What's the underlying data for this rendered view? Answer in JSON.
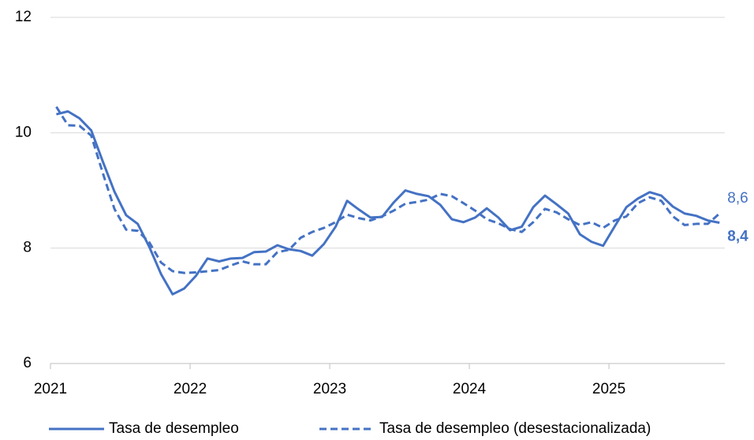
{
  "chart_data": {
    "type": "line",
    "x": [
      2021.042,
      2021.125,
      2021.208,
      2021.292,
      2021.375,
      2021.458,
      2021.542,
      2021.625,
      2021.708,
      2021.792,
      2021.875,
      2021.958,
      2022.042,
      2022.125,
      2022.208,
      2022.292,
      2022.375,
      2022.458,
      2022.542,
      2022.625,
      2022.708,
      2022.792,
      2022.875,
      2022.958,
      2023.042,
      2023.125,
      2023.208,
      2023.292,
      2023.375,
      2023.458,
      2023.542,
      2023.625,
      2023.708,
      2023.792,
      2023.875,
      2023.958,
      2024.042,
      2024.125,
      2024.208,
      2024.292,
      2024.375,
      2024.458,
      2024.542,
      2024.625,
      2024.708,
      2024.792,
      2024.875,
      2024.958,
      2025.042,
      2025.125,
      2025.208,
      2025.292,
      2025.375,
      2025.458,
      2025.542,
      2025.625,
      2025.708,
      2025.792
    ],
    "series": [
      {
        "name": "Tasa de desempleo",
        "color": "#4472c4",
        "dash": false,
        "values": [
          10.32,
          10.37,
          10.25,
          10.04,
          9.5,
          8.98,
          8.57,
          8.42,
          8.02,
          7.55,
          7.2,
          7.3,
          7.52,
          7.82,
          7.77,
          7.82,
          7.83,
          7.93,
          7.94,
          8.05,
          7.98,
          7.95,
          7.87,
          8.07,
          8.37,
          8.82,
          8.67,
          8.53,
          8.54,
          8.79,
          9.0,
          8.94,
          8.9,
          8.75,
          8.5,
          8.45,
          8.53,
          8.69,
          8.53,
          8.31,
          8.37,
          8.71,
          8.91,
          8.76,
          8.6,
          8.24,
          8.11,
          8.04,
          8.38,
          8.71,
          8.86,
          8.97,
          8.91,
          8.72,
          8.6,
          8.56,
          8.48,
          8.44
        ],
        "value_labels": [
          null,
          null,
          null,
          null,
          null,
          null,
          null,
          null,
          null,
          null,
          null,
          null,
          null,
          null,
          null,
          null,
          null,
          null,
          null,
          null,
          null,
          null,
          null,
          null,
          null,
          null,
          null,
          null,
          null,
          null,
          null,
          null,
          null,
          null,
          null,
          null,
          null,
          null,
          null,
          null,
          null,
          null,
          null,
          null,
          null,
          null,
          null,
          null,
          null,
          null,
          null,
          null,
          null,
          null,
          null,
          null,
          null,
          "8,4"
        ],
        "label_bold": true
      },
      {
        "name": "Tasa de desempleo (desestacionalizada)",
        "color": "#4472c4",
        "dash": true,
        "values": [
          10.45,
          10.13,
          10.12,
          9.95,
          9.3,
          8.68,
          8.32,
          8.3,
          8.1,
          7.75,
          7.6,
          7.57,
          7.58,
          7.6,
          7.62,
          7.7,
          7.77,
          7.72,
          7.72,
          7.93,
          7.97,
          8.18,
          8.28,
          8.35,
          8.45,
          8.58,
          8.52,
          8.48,
          8.55,
          8.65,
          8.77,
          8.8,
          8.84,
          8.94,
          8.9,
          8.78,
          8.65,
          8.5,
          8.43,
          8.33,
          8.28,
          8.45,
          8.68,
          8.62,
          8.5,
          8.4,
          8.45,
          8.35,
          8.48,
          8.55,
          8.78,
          8.88,
          8.82,
          8.55,
          8.4,
          8.42,
          8.42,
          8.6
        ],
        "value_labels": [
          null,
          null,
          null,
          null,
          null,
          null,
          null,
          null,
          null,
          null,
          null,
          null,
          null,
          null,
          null,
          null,
          null,
          null,
          null,
          null,
          null,
          null,
          null,
          null,
          null,
          null,
          null,
          null,
          null,
          null,
          null,
          null,
          null,
          null,
          null,
          null,
          null,
          null,
          null,
          null,
          null,
          null,
          null,
          null,
          null,
          null,
          null,
          null,
          null,
          null,
          null,
          null,
          null,
          null,
          null,
          null,
          null,
          "8,6"
        ],
        "label_bold": false
      }
    ],
    "xlim": [
      2021,
      2025.83
    ],
    "xticks": [
      2021,
      2022,
      2023,
      2024,
      2025
    ],
    "ylim": [
      6,
      12
    ],
    "yticks": [
      6,
      8,
      10,
      12
    ],
    "grid": true,
    "legend": "bottom"
  }
}
